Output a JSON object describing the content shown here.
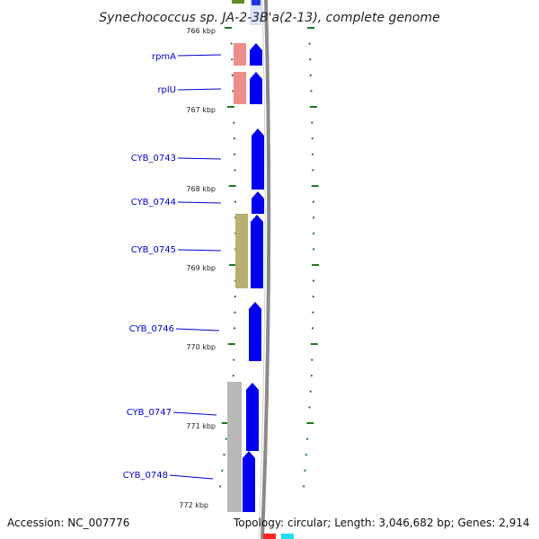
{
  "title": "Synechococcus sp. JA-2-3B'a(2-13), complete genome",
  "scale_labels": [
    "766 kbp",
    "767 kbp",
    "768 kbp",
    "769 kbp",
    "770 kbp",
    "771 kbp",
    "772 kbp"
  ],
  "genes": [
    {
      "name": "rpmA",
      "url_hint": "gene"
    },
    {
      "name": "rplU",
      "url_hint": "gene"
    },
    {
      "name": "CYB_0743",
      "url_hint": "gene"
    },
    {
      "name": "CYB_0744",
      "url_hint": "gene"
    },
    {
      "name": "CYB_0745",
      "url_hint": "gene"
    },
    {
      "name": "CYB_0746",
      "url_hint": "gene"
    },
    {
      "name": "CYB_0747",
      "url_hint": "gene"
    },
    {
      "name": "CYB_0748",
      "url_hint": "gene"
    }
  ],
  "colors": {
    "forward_cds": "#0000ee",
    "rna_feature": "#ee8888",
    "olive_feature": "#b8b070",
    "gray_feature": "#b4b4b4",
    "backbone": "#888888",
    "tick": "#1a7a1a",
    "label": "#0000cc"
  },
  "footer": {
    "accession": "Accession: NC_007776",
    "summary": "Topology: circular; Length: 3,046,682 bp; Genes: 2,914"
  }
}
